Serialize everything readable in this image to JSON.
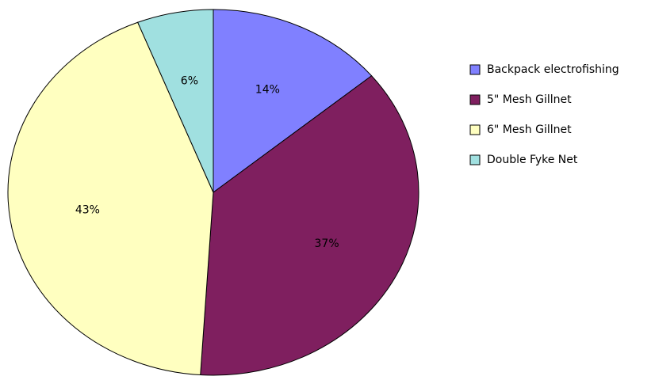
{
  "chart_data": {
    "type": "pie",
    "categories": [
      "Backpack electrofishing",
      "5\" Mesh Gillnet",
      "6\" Mesh Gillnet",
      "Double Fyke Net"
    ],
    "values": [
      14,
      37,
      43,
      6
    ],
    "value_labels": [
      "14%",
      "37%",
      "43%",
      "6%"
    ],
    "colors": [
      "#8080ff",
      "#7f1f5f",
      "#ffffc0",
      "#a0e0e0"
    ],
    "legend": "right"
  }
}
